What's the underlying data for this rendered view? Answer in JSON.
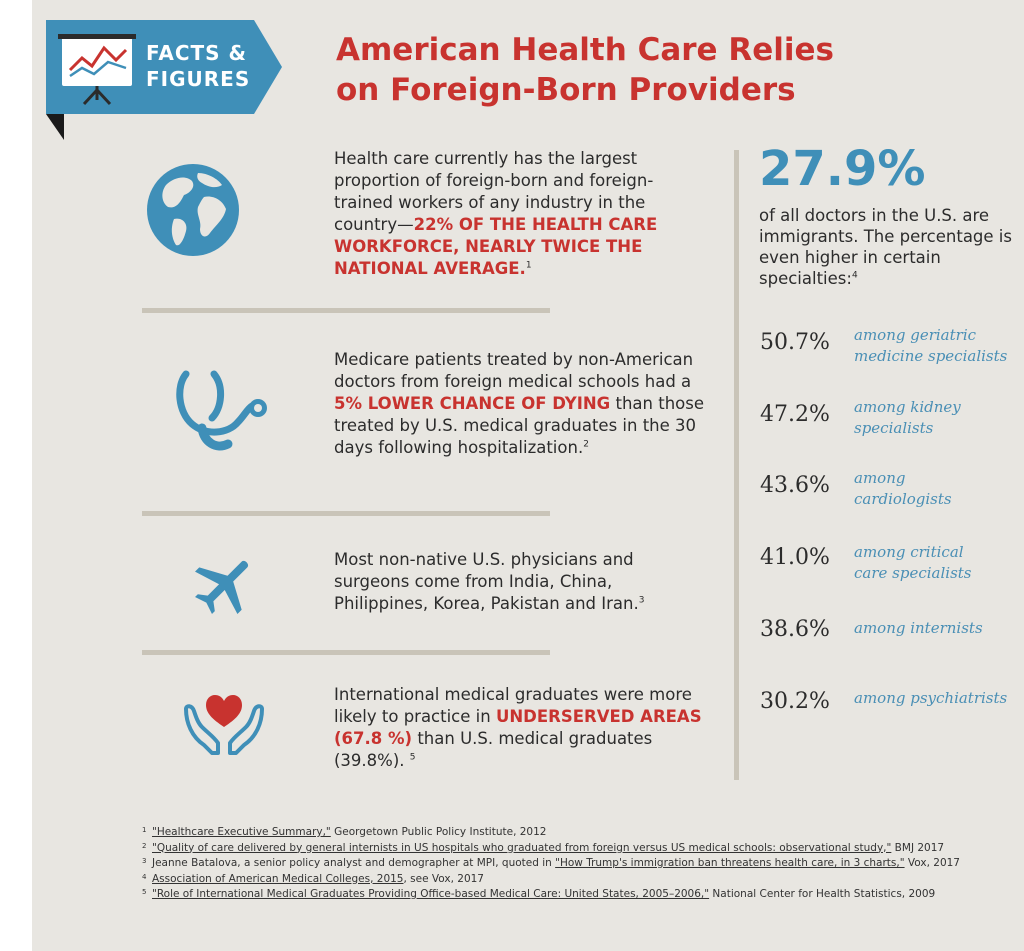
{
  "badge": {
    "line1": "FACTS &",
    "line2": "FIGURES"
  },
  "title": {
    "line1": "American Health Care Relies",
    "line2": "on Foreign-Born Providers"
  },
  "colors": {
    "accent_red": "#c8332f",
    "accent_blue": "#3f8fb8",
    "background": "#e8e6e1"
  },
  "facts": [
    {
      "icon": "globe-icon",
      "text_before": "Health care currently has the largest proportion of foreign-born and foreign-trained workers of any industry in the country—",
      "highlight": "22% OF THE HEALTH CARE WORKFORCE, NEARLY TWICE THE NATIONAL AVERAGE.",
      "text_after": "",
      "ref": "1"
    },
    {
      "icon": "stethoscope-icon",
      "text_before": "Medicare patients treated by non-American doctors from foreign medical schools had a ",
      "highlight": "5% LOWER CHANCE OF DYING",
      "text_after": " than those treated by U.S. medical graduates in the 30 days following hospitalization.",
      "ref": "2"
    },
    {
      "icon": "airplane-icon",
      "text_before": "Most non-native U.S. physicians and surgeons come from India, China, Philippines, Korea, Pakistan and Iran.",
      "highlight": "",
      "text_after": "",
      "ref": "3"
    },
    {
      "icon": "heart-hands-icon",
      "text_before": "International medical graduates were more likely to practice in ",
      "highlight": "UNDERSERVED AREAS (67.8 %)",
      "text_after": " than U.S. medical graduates (39.8%). ",
      "ref": "5"
    }
  ],
  "stat": {
    "value": "27.9%",
    "description": "of all doctors in the U.S. are immigrants. The percentage is even higher in certain specialties:",
    "ref": "4"
  },
  "specialties": [
    {
      "value": "50.7%",
      "label": "among geriatric medicine specialists"
    },
    {
      "value": "47.2%",
      "label": "among kidney specialists"
    },
    {
      "value": "43.6%",
      "label": "among cardiologists"
    },
    {
      "value": "41.0%",
      "label": "among critical care specialists"
    },
    {
      "value": "38.6%",
      "label": "among internists"
    },
    {
      "value": "30.2%",
      "label": "among psychiatrists"
    }
  ],
  "footnotes": [
    {
      "num": "1",
      "link": "\"Healthcare Executive Summary,\"",
      "pre": "",
      "rest": " Georgetown Public Policy Institute, 2012"
    },
    {
      "num": "2",
      "link": "\"Quality of care delivered by general internists in US hospitals who graduated from foreign versus US medical schools: observational study,\"",
      "pre": "",
      "rest": " BMJ 2017"
    },
    {
      "num": "3",
      "link": "\"How Trump's immigration ban threatens health care, in 3 charts,\"",
      "pre": "Jeanne Batalova, a senior policy analyst and demographer at MPI, quoted in ",
      "rest": " Vox, 2017"
    },
    {
      "num": "4",
      "link": "Association of American Medical Colleges, 2015",
      "pre": "",
      "rest": ", see Vox, 2017"
    },
    {
      "num": "5",
      "link": "\"Role of International Medical Graduates Providing Office-based Medical Care: United States, 2005–2006,\"",
      "pre": "",
      "rest": " National Center for Health Statistics, 2009"
    }
  ]
}
